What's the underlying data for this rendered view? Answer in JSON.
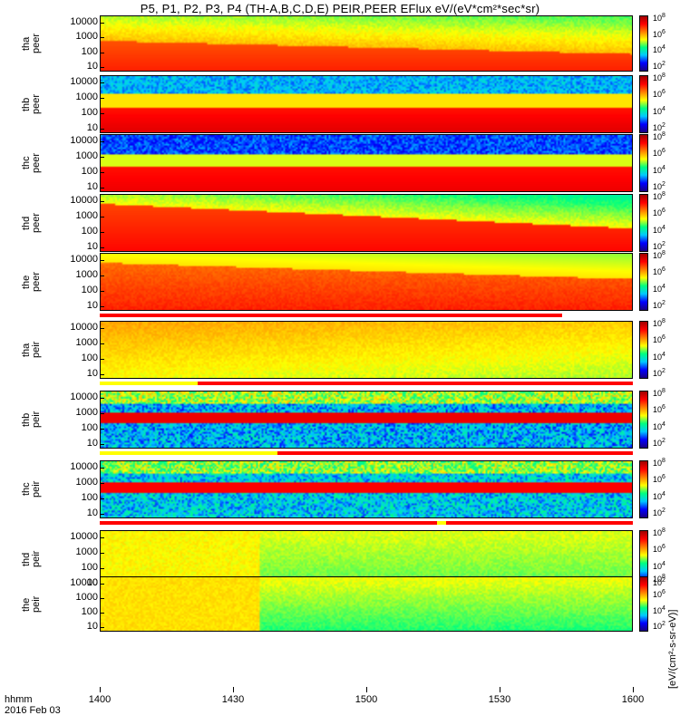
{
  "title": "P5, P1, P2, P3, P4 (TH-A,B,C,D,E) PEIR,PEER EFlux eV/(eV*cm²*sec*sr)",
  "colorbar_unit": "[eV/(cm²-s-sr-eV)]",
  "x_header": [
    "hhmm",
    "2016 Feb 03"
  ],
  "colors": {
    "scale": [
      "#1a0080",
      "#0000ff",
      "#00c8ff",
      "#00ff80",
      "#ffff00",
      "#ff8000",
      "#ff0000",
      "#a00000"
    ],
    "status_red": "#ff0000",
    "status_yellow": "#ffff00",
    "status_white": "#ffffff"
  },
  "chart_data": {
    "type": "heatmap",
    "x_axis": {
      "label": "hhmm",
      "date": "2016 Feb 03",
      "ticks": [
        "1400",
        "1430",
        "1500",
        "1530",
        "1600"
      ],
      "range_minutes": [
        0,
        120
      ]
    },
    "y_axis": {
      "scale": "log",
      "range_eV": [
        5,
        30000
      ],
      "ticks": [
        "10000",
        "1000",
        "100",
        "10"
      ]
    },
    "colorbar": {
      "scale": "log",
      "range": [
        10,
        100000000
      ],
      "ticks": [
        "10^8",
        "10^6",
        "10^4",
        "10^2"
      ]
    },
    "panels": [
      {
        "probe": "tha",
        "species": "peer",
        "ylab1": "tha",
        "ylab2": "peer",
        "profile": "peer_a",
        "status": []
      },
      {
        "probe": "thb",
        "species": "peer",
        "ylab1": "thb",
        "ylab2": "peer",
        "profile": "peer_b",
        "status": []
      },
      {
        "probe": "thc",
        "species": "peer",
        "ylab1": "thc",
        "ylab2": "peer",
        "profile": "peer_c",
        "status": []
      },
      {
        "probe": "thd",
        "species": "peer",
        "ylab1": "thd",
        "ylab2": "peer",
        "profile": "peer_d",
        "status": []
      },
      {
        "probe": "the",
        "species": "peer",
        "ylab1": "the",
        "ylab2": "peer",
        "profile": "peer_e",
        "status": [
          {
            "from": 0,
            "to": 104,
            "color": "red"
          },
          {
            "from": 104,
            "to": 120,
            "color": "white"
          }
        ]
      },
      {
        "probe": "tha",
        "species": "peir",
        "ylab1": "tha",
        "ylab2": "peir",
        "profile": "peir_a",
        "status": [
          {
            "from": 0,
            "to": 22,
            "color": "yellow"
          },
          {
            "from": 22,
            "to": 120,
            "color": "red"
          }
        ]
      },
      {
        "probe": "thb",
        "species": "peir",
        "ylab1": "thb",
        "ylab2": "peir",
        "profile": "peir_b",
        "status": [
          {
            "from": 0,
            "to": 40,
            "color": "yellow"
          },
          {
            "from": 40,
            "to": 120,
            "color": "red"
          }
        ]
      },
      {
        "probe": "thc",
        "species": "peir",
        "ylab1": "thc",
        "ylab2": "peir",
        "profile": "peir_c",
        "status": [
          {
            "from": 0,
            "to": 76,
            "color": "red"
          },
          {
            "from": 76,
            "to": 78,
            "color": "yellow"
          },
          {
            "from": 78,
            "to": 120,
            "color": "red"
          }
        ]
      },
      {
        "probe": "thd",
        "species": "peir",
        "ylab1": "thd",
        "ylab2": "peir",
        "profile": "peir_d",
        "status": [
          {
            "from": 0,
            "to": 120,
            "color": "red"
          }
        ]
      },
      {
        "probe": "the",
        "species": "peir",
        "ylab1": "the",
        "ylab2": "peir",
        "profile": "peir_e",
        "status": []
      }
    ]
  }
}
